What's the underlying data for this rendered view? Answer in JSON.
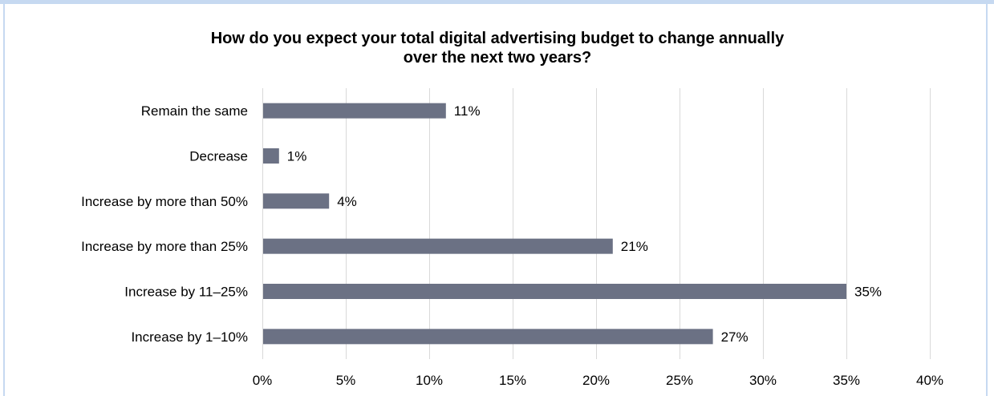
{
  "chart_data": {
    "type": "bar",
    "orientation": "horizontal",
    "title_lines": [
      "How do you expect your total digital advertising budget to change annually",
      "over the next two years?"
    ],
    "categories": [
      "Remain the same",
      "Decrease",
      "Increase by more than 50%",
      "Increase by more than 25%",
      "Increase by 11–25%",
      "Increase by 1–10%"
    ],
    "values": [
      11,
      1,
      4,
      21,
      35,
      27
    ],
    "value_labels": [
      "11%",
      "1%",
      "4%",
      "21%",
      "35%",
      "27%"
    ],
    "xlim": [
      0,
      40
    ],
    "x_ticks": [
      0,
      5,
      10,
      15,
      20,
      25,
      30,
      35,
      40
    ],
    "x_tick_labels": [
      "0%",
      "5%",
      "10%",
      "15%",
      "20%",
      "25%",
      "30%",
      "35%",
      "40%"
    ],
    "xlabel": "",
    "ylabel": "",
    "grid": "vertical",
    "legend": "none",
    "colors": {
      "bar": "#6b7184",
      "grid": "#d9d9d9",
      "frame": "#c6d9f1",
      "text": "#000000"
    }
  }
}
